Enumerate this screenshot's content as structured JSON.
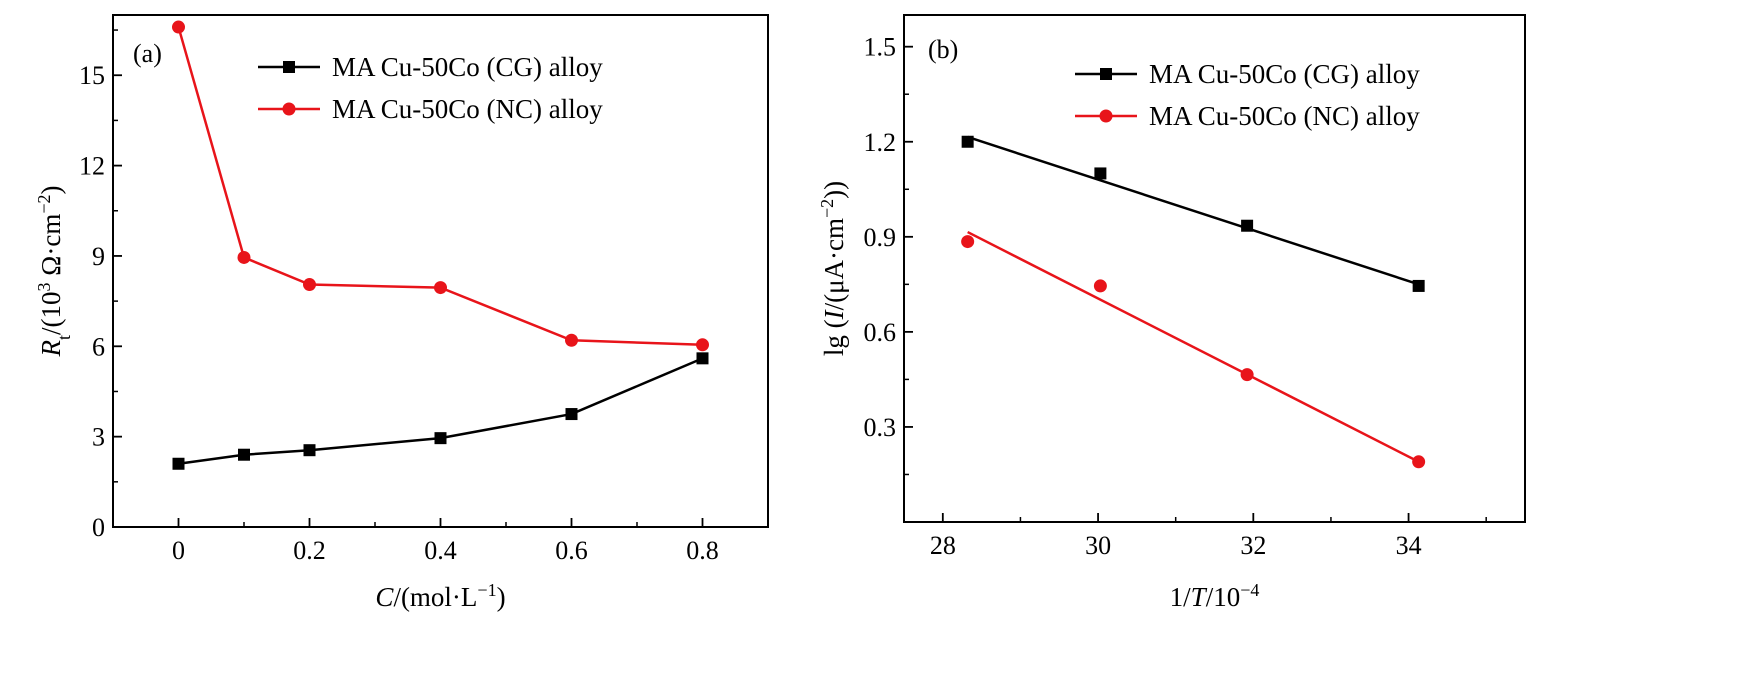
{
  "chart_data": [
    {
      "type": "line",
      "panel_label": "(a)",
      "xlabel": {
        "var": "C",
        "rest": "/(mol·L",
        "sup": "−1",
        "close": ")"
      },
      "ylabel": {
        "var": "R",
        "sub": "t",
        "rest": "/(10",
        "sup": "3",
        "rest2": " Ω·cm",
        "sup2": "−2",
        "close": ")"
      },
      "xlim": [
        -0.1,
        0.9
      ],
      "ylim": [
        0,
        17
      ],
      "xticks": [
        0,
        0.2,
        0.4,
        0.6,
        0.8
      ],
      "xtick_labels": [
        "0",
        "0.2",
        "0.4",
        "0.6",
        "0.8"
      ],
      "yticks": [
        0,
        3,
        6,
        9,
        12,
        15
      ],
      "ytick_labels": [
        "0",
        "3",
        "6",
        "9",
        "12",
        "15"
      ],
      "legend_position": "top-right",
      "series": [
        {
          "name": "MA Cu-50Co (CG) alloy",
          "color": "#000000",
          "marker": "square",
          "x": [
            0,
            0.1,
            0.2,
            0.4,
            0.6,
            0.8
          ],
          "y": [
            2.1,
            2.4,
            2.55,
            2.95,
            3.75,
            5.6
          ]
        },
        {
          "name": "MA Cu-50Co (NC) alloy",
          "color": "#e8141a",
          "marker": "circle",
          "x": [
            0,
            0.1,
            0.2,
            0.4,
            0.6,
            0.8
          ],
          "y": [
            16.6,
            8.95,
            8.05,
            7.95,
            6.2,
            6.05
          ]
        }
      ]
    },
    {
      "type": "scatter",
      "panel_label": "(b)",
      "xlabel": {
        "pre": "1/",
        "var": "T",
        "rest": "/10",
        "sup": "−4"
      },
      "ylabel": {
        "pre": "lg (",
        "var": "I",
        "rest": "/(μA·cm",
        "sup": "−2",
        "close": "))"
      },
      "xlim": [
        27.5,
        35.5
      ],
      "ylim": [
        0.0,
        1.6
      ],
      "xticks": [
        28,
        30,
        32,
        34
      ],
      "xtick_labels": [
        "28",
        "30",
        "32",
        "34"
      ],
      "yticks": [
        0.3,
        0.6,
        0.9,
        1.2,
        1.5
      ],
      "ytick_labels": [
        "0.3",
        "0.6",
        "0.9",
        "1.2",
        "1.5"
      ],
      "legend_position": "top-right",
      "series": [
        {
          "name": "MA Cu-50Co (CG) alloy",
          "color": "#000000",
          "marker": "square",
          "x": [
            28.32,
            30.03,
            31.92,
            34.13
          ],
          "y": [
            1.2,
            1.1,
            0.935,
            0.745
          ],
          "fit": {
            "x": [
              28.32,
              34.13
            ],
            "y": [
              1.215,
              0.75
            ]
          }
        },
        {
          "name": "MA Cu-50Co (NC) alloy",
          "color": "#e8141a",
          "marker": "circle",
          "x": [
            28.32,
            30.03,
            31.92,
            34.13
          ],
          "y": [
            0.885,
            0.745,
            0.465,
            0.19
          ],
          "fit": {
            "x": [
              28.32,
              34.13
            ],
            "y": [
              0.915,
              0.19
            ]
          }
        }
      ]
    }
  ]
}
